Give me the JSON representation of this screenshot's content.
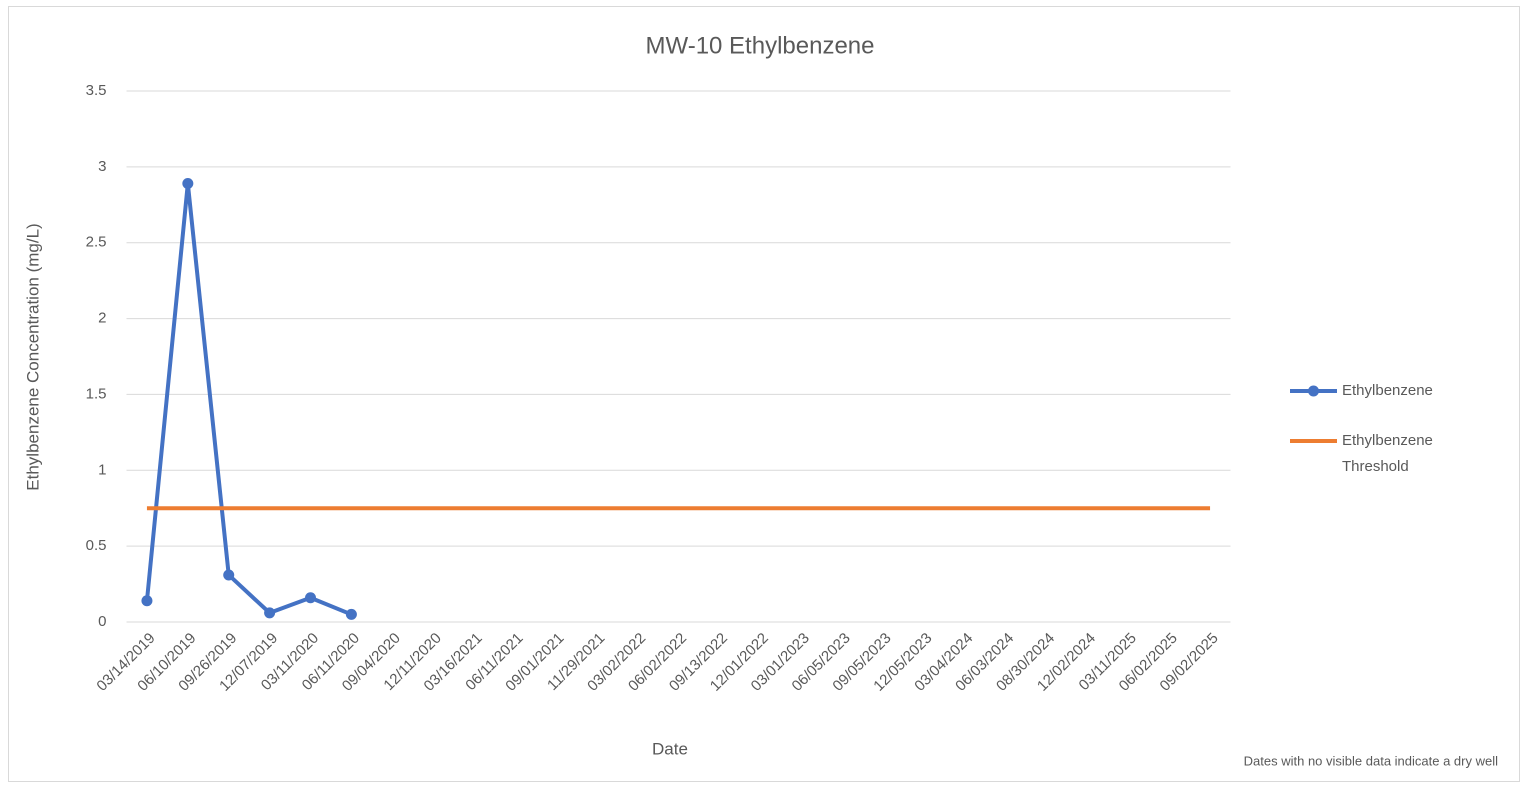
{
  "chart_data": {
    "type": "line",
    "title": "MW-10 Ethylbenzene",
    "x_label": "Date",
    "y_label": "Ethylbenzene Concentration (mg/L)",
    "annotation": "Dates with no visible data indicate a dry well",
    "categories": [
      "03/14/2019",
      "06/10/2019",
      "09/26/2019",
      "12/07/2019",
      "03/11/2020",
      "06/11/2020",
      "09/04/2020",
      "12/11/2020",
      "03/16/2021",
      "06/11/2021",
      "09/01/2021",
      "11/29/2021",
      "03/02/2022",
      "06/02/2022",
      "09/13/2022",
      "12/01/2022",
      "03/01/2023",
      "06/05/2023",
      "09/05/2023",
      "12/05/2023",
      "03/04/2024",
      "06/03/2024",
      "08/30/2024",
      "12/02/2024",
      "03/11/2025",
      "06/02/2025",
      "09/02/2025"
    ],
    "series": [
      {
        "name": "Ethylbenzene",
        "color": "#4472c4",
        "marker": true,
        "values": [
          0.14,
          2.89,
          0.31,
          0.06,
          0.16,
          0.05,
          null,
          null,
          null,
          null,
          null,
          null,
          null,
          null,
          null,
          null,
          null,
          null,
          null,
          null,
          null,
          null,
          null,
          null,
          null,
          null,
          null
        ]
      },
      {
        "name": "Ethylbenzene Threshold",
        "color": "#ed7d31",
        "marker": false,
        "values": [
          0.75,
          0.75,
          0.75,
          0.75,
          0.75,
          0.75,
          0.75,
          0.75,
          0.75,
          0.75,
          0.75,
          0.75,
          0.75,
          0.75,
          0.75,
          0.75,
          0.75,
          0.75,
          0.75,
          0.75,
          0.75,
          0.75,
          0.75,
          0.75,
          0.75,
          0.75,
          0.75
        ]
      }
    ],
    "ylim": [
      0,
      3.5
    ],
    "yticks": [
      0,
      0.5,
      1,
      1.5,
      2,
      2.5,
      3,
      3.5
    ],
    "grid": true,
    "legend": "right"
  }
}
